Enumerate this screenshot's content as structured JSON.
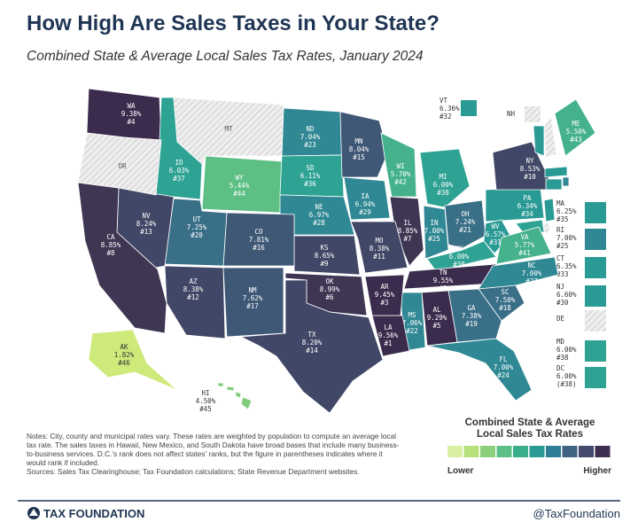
{
  "header": {
    "title": "How High Are Sales Taxes in Your State?",
    "subtitle": "Combined State & Average Local Sales Tax Rates, January 2024"
  },
  "states": [
    {
      "abbr": "WA",
      "rate": "9.38%",
      "rank": "#4",
      "color": "#3b2b4d"
    },
    {
      "abbr": "ID",
      "rate": "6.03%",
      "rank": "#37",
      "color": "#2ea394"
    },
    {
      "abbr": "WY",
      "rate": "5.44%",
      "rank": "#44",
      "color": "#5dbf84"
    },
    {
      "abbr": "ND",
      "rate": "7.04%",
      "rank": "#23",
      "color": "#2f8893"
    },
    {
      "abbr": "SD",
      "rate": "6.11%",
      "rank": "#36",
      "color": "#2ea394"
    },
    {
      "abbr": "NE",
      "rate": "6.97%",
      "rank": "#28",
      "color": "#2f8893"
    },
    {
      "abbr": "MN",
      "rate": "8.04%",
      "rank": "#15",
      "color": "#3f5876"
    },
    {
      "abbr": "WI",
      "rate": "5.70%",
      "rank": "#42",
      "color": "#45b28c"
    },
    {
      "abbr": "MI",
      "rate": "6.00%",
      "rank": "#38",
      "color": "#2ea394"
    },
    {
      "abbr": "IA",
      "rate": "6.94%",
      "rank": "#29",
      "color": "#2f8893"
    },
    {
      "abbr": "IL",
      "rate": "8.85%",
      "rank": "#7",
      "color": "#3e3653"
    },
    {
      "abbr": "IN",
      "rate": "7.00%",
      "rank": "#25",
      "color": "#2f8893"
    },
    {
      "abbr": "OH",
      "rate": "7.24%",
      "rank": "#21",
      "color": "#3a6f88"
    },
    {
      "abbr": "PA",
      "rate": "6.34%",
      "rank": "#34",
      "color": "#2a9a95"
    },
    {
      "abbr": "NY",
      "rate": "8.53%",
      "rank": "#10",
      "color": "#414766"
    },
    {
      "abbr": "VT",
      "rate": "6.36%",
      "rank": "#32",
      "color": "#2a9a95"
    },
    {
      "abbr": "ME",
      "rate": "5.50%",
      "rank": "#43",
      "color": "#45b28c"
    },
    {
      "abbr": "MA",
      "rate": "6.25%",
      "rank": "#35",
      "color": "#2a9a95"
    },
    {
      "abbr": "RI",
      "rate": "7.00%",
      "rank": "#25",
      "color": "#2f8893"
    },
    {
      "abbr": "CT",
      "rate": "6.35%",
      "rank": "#33",
      "color": "#2a9a95"
    },
    {
      "abbr": "NJ",
      "rate": "6.60%",
      "rank": "#30",
      "color": "#2a9a95"
    },
    {
      "abbr": "MD",
      "rate": "6.00%",
      "rank": "#38",
      "color": "#2ea394"
    },
    {
      "abbr": "DC",
      "rate": "6.00%",
      "rank": "(#38)",
      "color": "#2ea394"
    },
    {
      "abbr": "WV",
      "rate": "6.57%",
      "rank": "#31",
      "color": "#2a9a95"
    },
    {
      "abbr": "VA",
      "rate": "5.77%",
      "rank": "#41",
      "color": "#45b28c"
    },
    {
      "abbr": "KY",
      "rate": "6.00%",
      "rank": "#38",
      "color": "#2ea394"
    },
    {
      "abbr": "TN",
      "rate": "9.55%",
      "rank": "#2",
      "color": "#3b2b4d"
    },
    {
      "abbr": "NC",
      "rate": "7.00%",
      "rank": "#27",
      "color": "#2f8893"
    },
    {
      "abbr": "SC",
      "rate": "7.50%",
      "rank": "#18",
      "color": "#3a6f88"
    },
    {
      "abbr": "GA",
      "rate": "7.38%",
      "rank": "#19",
      "color": "#3a6f88"
    },
    {
      "abbr": "FL",
      "rate": "7.00%",
      "rank": "#24",
      "color": "#2f8893"
    },
    {
      "abbr": "AL",
      "rate": "9.29%",
      "rank": "#5",
      "color": "#3b2b4d"
    },
    {
      "abbr": "MS",
      "rate": "7.06%",
      "rank": "#22",
      "color": "#2f8893"
    },
    {
      "abbr": "LA",
      "rate": "9.56%",
      "rank": "#1",
      "color": "#3b2b4d"
    },
    {
      "abbr": "AR",
      "rate": "9.45%",
      "rank": "#3",
      "color": "#3b2b4d"
    },
    {
      "abbr": "MO",
      "rate": "8.38%",
      "rank": "#11",
      "color": "#414766"
    },
    {
      "abbr": "KS",
      "rate": "8.65%",
      "rank": "#9",
      "color": "#414766"
    },
    {
      "abbr": "OK",
      "rate": "8.99%",
      "rank": "#6",
      "color": "#3e3653"
    },
    {
      "abbr": "TX",
      "rate": "8.20%",
      "rank": "#14",
      "color": "#414766"
    },
    {
      "abbr": "NM",
      "rate": "7.62%",
      "rank": "#17",
      "color": "#3f5876"
    },
    {
      "abbr": "AZ",
      "rate": "8.38%",
      "rank": "#12",
      "color": "#414766"
    },
    {
      "abbr": "CO",
      "rate": "7.81%",
      "rank": "#16",
      "color": "#3f5876"
    },
    {
      "abbr": "UT",
      "rate": "7.25%",
      "rank": "#20",
      "color": "#3a6f88"
    },
    {
      "abbr": "NV",
      "rate": "8.24%",
      "rank": "#13",
      "color": "#414766"
    },
    {
      "abbr": "CA",
      "rate": "8.85%",
      "rank": "#8",
      "color": "#3e3653"
    },
    {
      "abbr": "AK",
      "rate": "1.82%",
      "rank": "#46",
      "color": "#cdea7a"
    },
    {
      "abbr": "HI",
      "rate": "4.50%",
      "rank": "#45",
      "color": "#7fcc7b"
    }
  ],
  "untaxed_states": [
    {
      "abbr": "OR"
    },
    {
      "abbr": "MT"
    },
    {
      "abbr": "NH"
    },
    {
      "abbr": "DE"
    }
  ],
  "legend": {
    "title": [
      "Combined State & Average",
      "Local Sales Tax Rates"
    ],
    "low": "Lower",
    "high": "Higher",
    "colors": [
      "#d9f0a3",
      "#b6e07b",
      "#8cd07b",
      "#5cbf87",
      "#3aae8c",
      "#2a9a95",
      "#2e7f96",
      "#3e6383",
      "#44496e",
      "#3d2e52"
    ]
  },
  "notes": "Notes: City, county and municipal rates vary. These rates are weighted by population to compute an average local tax rate. The sales taxes in Hawaii, New Mexico, and South Dakota have broad bases that include many business-to-business services. D.C.'s rank does not affect states' ranks, but the figure in parentheses indicates where it would rank if included.",
  "sources": "Sources: Sales Tax Clearinghouse; Tax Foundation calculations; State Revenue Department websites.",
  "footer": {
    "brand": "TAX FOUNDATION",
    "handle": "@TaxFoundation"
  }
}
